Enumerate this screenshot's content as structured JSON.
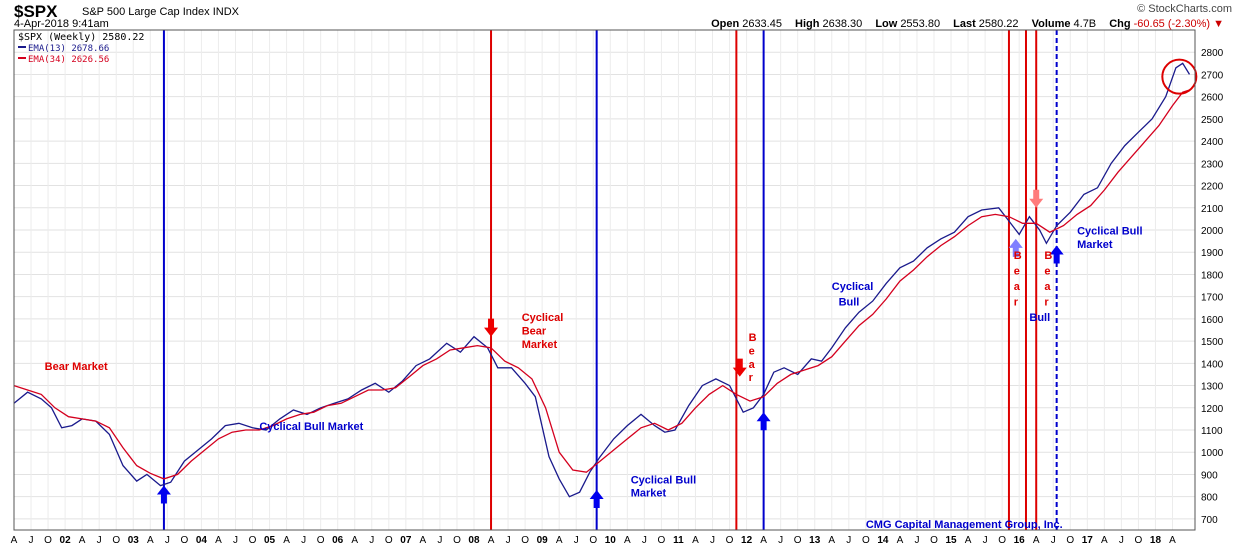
{
  "header": {
    "symbol": "$SPX",
    "name": "S&P 500 Large Cap Index",
    "exchange": "INDX",
    "brand": "© StockCharts.com",
    "date": "4-Apr-2018 9:41am",
    "open_label": "Open",
    "open": "2633.45",
    "high_label": "High",
    "high": "2638.30",
    "low_label": "Low",
    "low": "2553.80",
    "last_label": "Last",
    "last": "2580.22",
    "volume_label": "Volume",
    "volume": "4.7B",
    "chg_label": "Chg",
    "chg": "-60.65 (-2.30%)"
  },
  "legend": {
    "price": "$SPX (Weekly) 2580.22",
    "ema13": "EMA(13) 2678.66",
    "ema34": "EMA(34) 2626.56"
  },
  "colors": {
    "ema13": "#1a1a8c",
    "ema34": "#d4001e",
    "blue_line": "#0000cc",
    "red_line": "#dd0000"
  },
  "chart_data": {
    "type": "line",
    "ylim": [
      650,
      2900
    ],
    "xlim": [
      2001.0,
      2018.33
    ],
    "yticks": [
      700,
      800,
      900,
      1000,
      1100,
      1200,
      1300,
      1400,
      1500,
      1600,
      1700,
      1800,
      1900,
      2000,
      2100,
      2200,
      2300,
      2400,
      2500,
      2600,
      2700,
      2800
    ],
    "xticks": [
      "A",
      "J",
      "O",
      "02",
      "A",
      "J",
      "O",
      "03",
      "A",
      "J",
      "O",
      "04",
      "A",
      "J",
      "O",
      "05",
      "A",
      "J",
      "O",
      "06",
      "A",
      "J",
      "O",
      "07",
      "A",
      "J",
      "O",
      "08",
      "A",
      "J",
      "O",
      "09",
      "A",
      "J",
      "O",
      "10",
      "A",
      "J",
      "O",
      "11",
      "A",
      "J",
      "O",
      "12",
      "A",
      "J",
      "O",
      "13",
      "A",
      "J",
      "O",
      "14",
      "A",
      "J",
      "O",
      "15",
      "A",
      "J",
      "O",
      "16",
      "A",
      "J",
      "O",
      "17",
      "A",
      "J",
      "O",
      "18",
      "A"
    ],
    "series": [
      {
        "name": "EMA(13)",
        "points": [
          [
            2001.0,
            1220
          ],
          [
            2001.2,
            1270
          ],
          [
            2001.4,
            1240
          ],
          [
            2001.55,
            1200
          ],
          [
            2001.7,
            1110
          ],
          [
            2001.85,
            1120
          ],
          [
            2002.0,
            1150
          ],
          [
            2002.2,
            1140
          ],
          [
            2002.4,
            1080
          ],
          [
            2002.6,
            940
          ],
          [
            2002.8,
            870
          ],
          [
            2002.95,
            900
          ],
          [
            2003.15,
            850
          ],
          [
            2003.3,
            865
          ],
          [
            2003.5,
            960
          ],
          [
            2003.7,
            1010
          ],
          [
            2003.9,
            1060
          ],
          [
            2004.1,
            1120
          ],
          [
            2004.3,
            1130
          ],
          [
            2004.5,
            1110
          ],
          [
            2004.7,
            1100
          ],
          [
            2004.9,
            1150
          ],
          [
            2005.1,
            1190
          ],
          [
            2005.3,
            1170
          ],
          [
            2005.5,
            1200
          ],
          [
            2005.7,
            1220
          ],
          [
            2005.9,
            1240
          ],
          [
            2006.1,
            1280
          ],
          [
            2006.3,
            1310
          ],
          [
            2006.5,
            1270
          ],
          [
            2006.7,
            1320
          ],
          [
            2006.9,
            1390
          ],
          [
            2007.1,
            1420
          ],
          [
            2007.35,
            1490
          ],
          [
            2007.55,
            1450
          ],
          [
            2007.75,
            1520
          ],
          [
            2007.95,
            1470
          ],
          [
            2008.1,
            1380
          ],
          [
            2008.3,
            1380
          ],
          [
            2008.5,
            1310
          ],
          [
            2008.65,
            1250
          ],
          [
            2008.85,
            980
          ],
          [
            2009.0,
            880
          ],
          [
            2009.15,
            800
          ],
          [
            2009.3,
            820
          ],
          [
            2009.45,
            910
          ],
          [
            2009.6,
            980
          ],
          [
            2009.8,
            1060
          ],
          [
            2010.0,
            1120
          ],
          [
            2010.2,
            1170
          ],
          [
            2010.4,
            1120
          ],
          [
            2010.55,
            1090
          ],
          [
            2010.7,
            1100
          ],
          [
            2010.9,
            1210
          ],
          [
            2011.1,
            1300
          ],
          [
            2011.3,
            1330
          ],
          [
            2011.5,
            1300
          ],
          [
            2011.7,
            1180
          ],
          [
            2011.85,
            1200
          ],
          [
            2012.0,
            1260
          ],
          [
            2012.15,
            1360
          ],
          [
            2012.3,
            1380
          ],
          [
            2012.5,
            1350
          ],
          [
            2012.7,
            1420
          ],
          [
            2012.85,
            1410
          ],
          [
            2013.0,
            1470
          ],
          [
            2013.2,
            1560
          ],
          [
            2013.4,
            1630
          ],
          [
            2013.6,
            1680
          ],
          [
            2013.8,
            1760
          ],
          [
            2014.0,
            1830
          ],
          [
            2014.2,
            1860
          ],
          [
            2014.4,
            1920
          ],
          [
            2014.6,
            1960
          ],
          [
            2014.8,
            1990
          ],
          [
            2015.0,
            2060
          ],
          [
            2015.2,
            2090
          ],
          [
            2015.45,
            2100
          ],
          [
            2015.6,
            2040
          ],
          [
            2015.75,
            1980
          ],
          [
            2015.9,
            2060
          ],
          [
            2016.05,
            2000
          ],
          [
            2016.15,
            1940
          ],
          [
            2016.3,
            2020
          ],
          [
            2016.5,
            2080
          ],
          [
            2016.7,
            2160
          ],
          [
            2016.9,
            2190
          ],
          [
            2017.1,
            2300
          ],
          [
            2017.3,
            2380
          ],
          [
            2017.5,
            2440
          ],
          [
            2017.7,
            2500
          ],
          [
            2017.9,
            2600
          ],
          [
            2018.05,
            2730
          ],
          [
            2018.15,
            2750
          ],
          [
            2018.25,
            2700
          ]
        ]
      },
      {
        "name": "EMA(34)",
        "points": [
          [
            2001.0,
            1300
          ],
          [
            2001.2,
            1280
          ],
          [
            2001.4,
            1260
          ],
          [
            2001.6,
            1200
          ],
          [
            2001.8,
            1160
          ],
          [
            2002.0,
            1150
          ],
          [
            2002.2,
            1140
          ],
          [
            2002.4,
            1110
          ],
          [
            2002.6,
            1020
          ],
          [
            2002.8,
            940
          ],
          [
            2003.0,
            905
          ],
          [
            2003.2,
            880
          ],
          [
            2003.4,
            900
          ],
          [
            2003.6,
            960
          ],
          [
            2003.8,
            1010
          ],
          [
            2004.0,
            1060
          ],
          [
            2004.2,
            1090
          ],
          [
            2004.4,
            1100
          ],
          [
            2004.6,
            1100
          ],
          [
            2004.8,
            1120
          ],
          [
            2005.0,
            1150
          ],
          [
            2005.2,
            1170
          ],
          [
            2005.4,
            1180
          ],
          [
            2005.6,
            1210
          ],
          [
            2005.8,
            1220
          ],
          [
            2006.0,
            1250
          ],
          [
            2006.2,
            1280
          ],
          [
            2006.4,
            1280
          ],
          [
            2006.6,
            1290
          ],
          [
            2006.8,
            1340
          ],
          [
            2007.0,
            1390
          ],
          [
            2007.2,
            1420
          ],
          [
            2007.4,
            1460
          ],
          [
            2007.6,
            1470
          ],
          [
            2007.8,
            1480
          ],
          [
            2008.0,
            1470
          ],
          [
            2008.2,
            1410
          ],
          [
            2008.4,
            1380
          ],
          [
            2008.6,
            1330
          ],
          [
            2008.8,
            1200
          ],
          [
            2009.0,
            1000
          ],
          [
            2009.2,
            920
          ],
          [
            2009.4,
            910
          ],
          [
            2009.6,
            960
          ],
          [
            2009.8,
            1010
          ],
          [
            2010.0,
            1060
          ],
          [
            2010.2,
            1110
          ],
          [
            2010.4,
            1130
          ],
          [
            2010.6,
            1100
          ],
          [
            2010.8,
            1130
          ],
          [
            2011.0,
            1200
          ],
          [
            2011.2,
            1260
          ],
          [
            2011.4,
            1300
          ],
          [
            2011.6,
            1260
          ],
          [
            2011.8,
            1230
          ],
          [
            2012.0,
            1250
          ],
          [
            2012.2,
            1310
          ],
          [
            2012.4,
            1350
          ],
          [
            2012.6,
            1370
          ],
          [
            2012.8,
            1390
          ],
          [
            2013.0,
            1430
          ],
          [
            2013.2,
            1500
          ],
          [
            2013.4,
            1570
          ],
          [
            2013.6,
            1620
          ],
          [
            2013.8,
            1690
          ],
          [
            2014.0,
            1770
          ],
          [
            2014.2,
            1820
          ],
          [
            2014.4,
            1880
          ],
          [
            2014.6,
            1930
          ],
          [
            2014.8,
            1970
          ],
          [
            2015.0,
            2020
          ],
          [
            2015.2,
            2060
          ],
          [
            2015.4,
            2070
          ],
          [
            2015.6,
            2060
          ],
          [
            2015.8,
            2030
          ],
          [
            2016.0,
            2030
          ],
          [
            2016.2,
            1990
          ],
          [
            2016.4,
            2020
          ],
          [
            2016.6,
            2070
          ],
          [
            2016.8,
            2110
          ],
          [
            2017.0,
            2180
          ],
          [
            2017.2,
            2260
          ],
          [
            2017.4,
            2330
          ],
          [
            2017.6,
            2400
          ],
          [
            2017.8,
            2470
          ],
          [
            2018.0,
            2560
          ],
          [
            2018.15,
            2620
          ],
          [
            2018.25,
            2630
          ]
        ]
      }
    ],
    "vertical_lines": [
      {
        "x": 2003.2,
        "color": "blue"
      },
      {
        "x": 2008.0,
        "color": "red"
      },
      {
        "x": 2009.55,
        "color": "blue"
      },
      {
        "x": 2011.6,
        "color": "red"
      },
      {
        "x": 2012.0,
        "color": "blue"
      },
      {
        "x": 2015.6,
        "color": "red"
      },
      {
        "x": 2015.85,
        "color": "red"
      },
      {
        "x": 2016.0,
        "color": "red"
      },
      {
        "x": 2016.3,
        "color": "blue",
        "dashed": true
      }
    ],
    "arrows": [
      {
        "x": 2003.2,
        "y": 850,
        "dir": "up",
        "color": "blue"
      },
      {
        "x": 2008.0,
        "y": 1520,
        "dir": "down",
        "color": "red"
      },
      {
        "x": 2009.55,
        "y": 830,
        "dir": "up",
        "color": "blue"
      },
      {
        "x": 2011.65,
        "y": 1340,
        "dir": "down",
        "color": "red"
      },
      {
        "x": 2012.0,
        "y": 1180,
        "dir": "up",
        "color": "blue"
      },
      {
        "x": 2015.7,
        "y": 1960,
        "dir": "up",
        "color": "lightblue"
      },
      {
        "x": 2016.0,
        "y": 2100,
        "dir": "down",
        "color": "lightred"
      },
      {
        "x": 2016.3,
        "y": 1930,
        "dir": "up",
        "color": "blue"
      }
    ],
    "annotations": [
      {
        "text": "Bear Market",
        "x": 2001.45,
        "y": 1370,
        "color": "red"
      },
      {
        "text": "Cyclical Bull Market",
        "x": 2004.6,
        "y": 1100,
        "color": "blue"
      },
      {
        "text": "Cyclical",
        "x": 2008.45,
        "y": 1590,
        "color": "red"
      },
      {
        "text": "Bear",
        "x": 2008.45,
        "y": 1530,
        "color": "red"
      },
      {
        "text": "Market",
        "x": 2008.45,
        "y": 1470,
        "color": "red"
      },
      {
        "text": "Cyclical Bull",
        "x": 2010.05,
        "y": 860,
        "color": "blue"
      },
      {
        "text": "Market",
        "x": 2010.05,
        "y": 800,
        "color": "blue"
      },
      {
        "text": "B",
        "x": 2011.78,
        "y": 1500,
        "color": "red"
      },
      {
        "text": "e",
        "x": 2011.78,
        "y": 1440,
        "color": "red"
      },
      {
        "text": "a",
        "x": 2011.78,
        "y": 1380,
        "color": "red"
      },
      {
        "text": "r",
        "x": 2011.78,
        "y": 1320,
        "color": "red"
      },
      {
        "text": "Cyclical",
        "x": 2013.0,
        "y": 1730,
        "color": "blue"
      },
      {
        "text": "Bull",
        "x": 2013.1,
        "y": 1660,
        "color": "blue"
      },
      {
        "text": "B",
        "x": 2015.67,
        "y": 1870,
        "color": "red"
      },
      {
        "text": "e",
        "x": 2015.67,
        "y": 1800,
        "color": "red"
      },
      {
        "text": "a",
        "x": 2015.67,
        "y": 1730,
        "color": "red"
      },
      {
        "text": "r",
        "x": 2015.67,
        "y": 1660,
        "color": "red"
      },
      {
        "text": "Bull",
        "x": 2015.9,
        "y": 1590,
        "color": "blue"
      },
      {
        "text": "B",
        "x": 2016.12,
        "y": 1870,
        "color": "red"
      },
      {
        "text": "e",
        "x": 2016.12,
        "y": 1800,
        "color": "red"
      },
      {
        "text": "a",
        "x": 2016.12,
        "y": 1730,
        "color": "red"
      },
      {
        "text": "r",
        "x": 2016.12,
        "y": 1660,
        "color": "red"
      },
      {
        "text": "Cyclical Bull",
        "x": 2016.6,
        "y": 1980,
        "color": "blue"
      },
      {
        "text": "Market",
        "x": 2016.6,
        "y": 1920,
        "color": "blue"
      },
      {
        "text": "CMG Capital Management Group, Inc.",
        "x": 2013.5,
        "y": 660,
        "color": "blue"
      }
    ],
    "circle": {
      "x": 2018.1,
      "y": 2690
    },
    "grid": true,
    "legend_position": "top-left"
  }
}
